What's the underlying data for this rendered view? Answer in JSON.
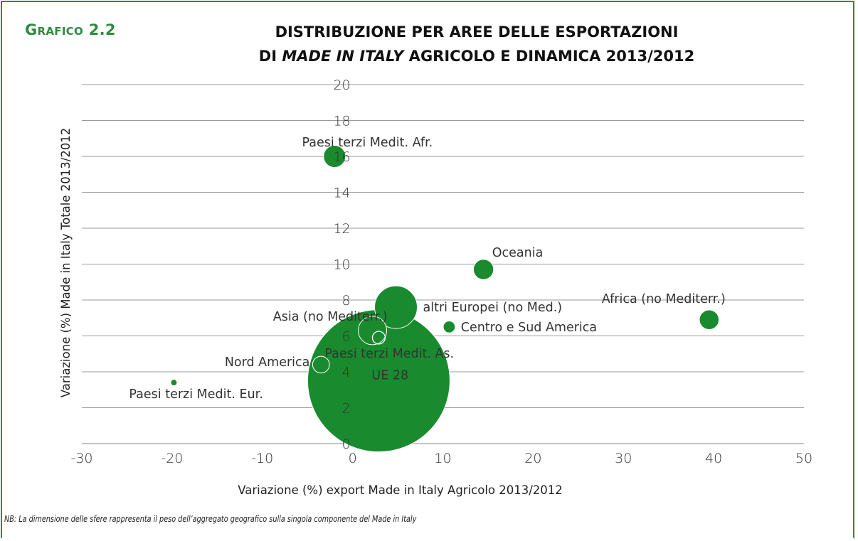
{
  "figure_label": "Grafico 2.2",
  "title_line1": "DISTRIBUZIONE PER AREE DELLE ESPORTAZIONI",
  "title_line2_prefix": "DI ",
  "title_line2_italic": "MADE IN ITALY",
  "title_line2_suffix": " AGRICOLO E DINAMICA 2013/2012",
  "note": "NB: La dimensione delle sfere rappresenta il peso dell’aggregato geografico sulla singola componente del Made in Italy",
  "colors": {
    "accent": "#2e8b3e",
    "bubble": "#1a8a2e",
    "grid": "#9a9a9a"
  },
  "chart_data": {
    "type": "scatter",
    "bubble": true,
    "xlabel": "Variazione (%) export Made in Italy Agricolo 2013/2012",
    "ylabel": "Variazione (%) Made in Italy Totale 2013/2012",
    "xlim": [
      -30,
      50
    ],
    "ylim": [
      0,
      20
    ],
    "xticks": [
      -30,
      -20,
      -10,
      0,
      10,
      20,
      30,
      40,
      50
    ],
    "yticks": [
      0,
      2,
      4,
      6,
      8,
      10,
      12,
      14,
      16,
      18,
      20
    ],
    "grid": "horizontal",
    "points": [
      {
        "label": "Paesi terzi  Medit. Afr.",
        "x": -2.0,
        "y": 16.0,
        "size": 2.4,
        "fill": true,
        "label_pos": "left-above"
      },
      {
        "label": "Oceania",
        "x": 14.5,
        "y": 9.7,
        "size": 2.0,
        "fill": true,
        "label_pos": "right-above"
      },
      {
        "label": "altri Europei (no Med.)",
        "x": 4.8,
        "y": 7.6,
        "size": 9.0,
        "fill": true,
        "label_pos": "right"
      },
      {
        "label": "Africa (no Mediterr.)",
        "x": 39.5,
        "y": 6.9,
        "size": 1.9,
        "fill": true,
        "label_pos": "left-above"
      },
      {
        "label": "Centro e Sud America",
        "x": 10.7,
        "y": 6.5,
        "size": 0.7,
        "fill": true,
        "label_pos": "right"
      },
      {
        "label": "Asia (no Mediterr.)",
        "x": 2.2,
        "y": 6.3,
        "size": 4.0,
        "fill": true,
        "label_pos": "left-above"
      },
      {
        "label": "Paesi terzi  Medit. As.",
        "x": 2.9,
        "y": 5.9,
        "size": 0.8,
        "fill": false,
        "label_pos": "below"
      },
      {
        "label": "Nord America",
        "x": -3.5,
        "y": 4.4,
        "size": 1.4,
        "fill": true,
        "label_pos": "left"
      },
      {
        "label": "UE 28",
        "x": 2.9,
        "y": 3.5,
        "size": 100,
        "fill": true,
        "label_pos": "inside"
      },
      {
        "label": "Paesi terzi  Medit. Eur.",
        "x": -19.8,
        "y": 3.4,
        "size": 0.2,
        "fill": true,
        "label_pos": "below-left"
      }
    ]
  }
}
